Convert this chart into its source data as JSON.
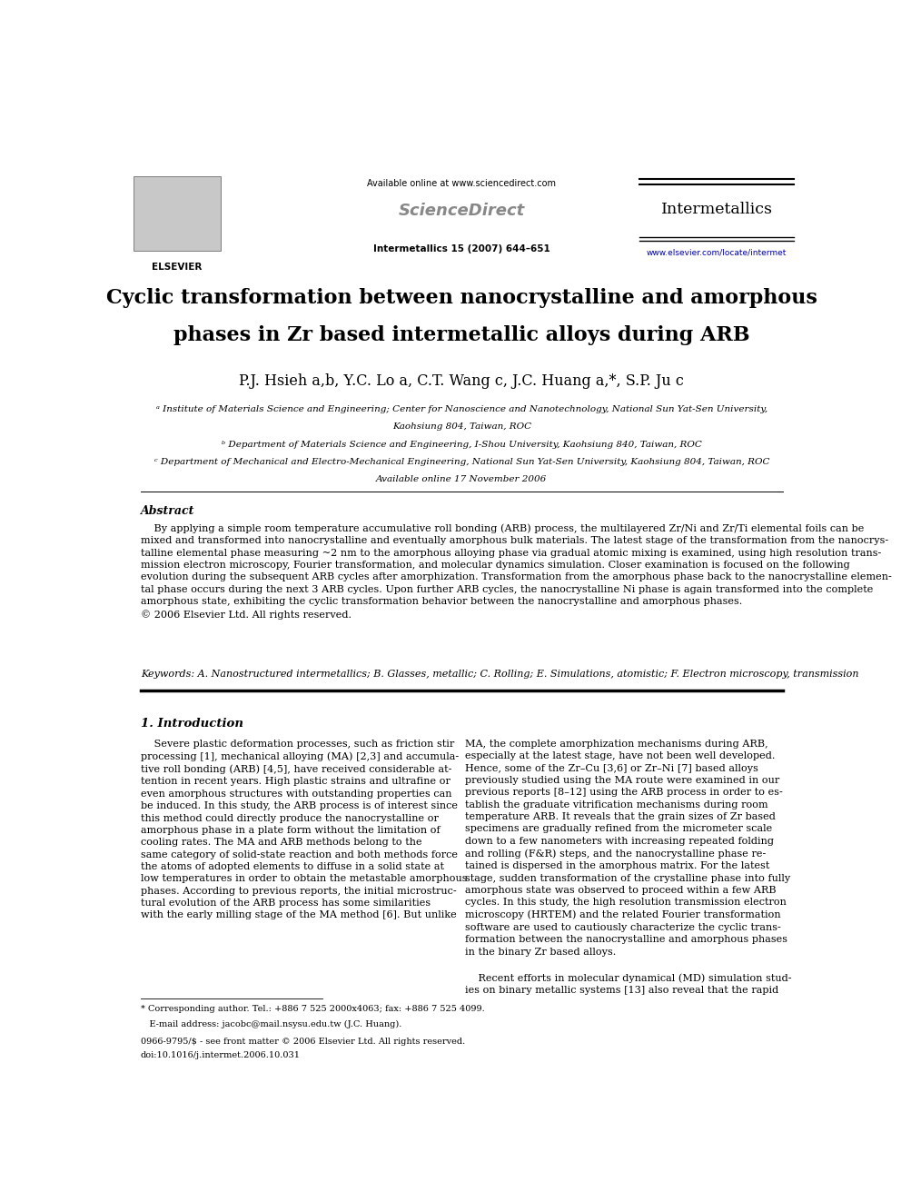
{
  "bg_color": "#ffffff",
  "page_width": 9.92,
  "page_height": 13.23,
  "header_available": "Available online at www.sciencedirect.com",
  "header_sciencedirect": "ScienceDirect",
  "header_journal_info": "Intermetallics 15 (2007) 644–651",
  "header_intermetallics": "Intermetallics",
  "header_url": "www.elsevier.com/locate/intermet",
  "elsevier_text": "ELSEVIER",
  "title_line1": "Cyclic transformation between nanocrystalline and amorphous",
  "title_line2": "phases in Zr based intermetallic alloys during ARB",
  "authors_str": "P.J. Hsieh a,b, Y.C. Lo a, C.T. Wang c, J.C. Huang a,*, S.P. Ju c",
  "affil_a1": "ᵃ Institute of Materials Science and Engineering; Center for Nanoscience and Nanotechnology, National Sun Yat-Sen University,",
  "affil_a2": "Kaohsiung 804, Taiwan, ROC",
  "affil_b": "ᵇ Department of Materials Science and Engineering, I-Shou University, Kaohsiung 840, Taiwan, ROC",
  "affil_c": "ᶜ Department of Mechanical and Electro-Mechanical Engineering, National Sun Yat-Sen University, Kaohsiung 804, Taiwan, ROC",
  "available_online_date": "Available online 17 November 2006",
  "abstract_title": "Abstract",
  "abstract_body": "    By applying a simple room temperature accumulative roll bonding (ARB) process, the multilayered Zr/Ni and Zr/Ti elemental foils can be\nmixed and transformed into nanocrystalline and eventually amorphous bulk materials. The latest stage of the transformation from the nanocrys-\ntalline elemental phase measuring ~2 nm to the amorphous alloying phase via gradual atomic mixing is examined, using high resolution trans-\nmission electron microscopy, Fourier transformation, and molecular dynamics simulation. Closer examination is focused on the following\nevolution during the subsequent ARB cycles after amorphization. Transformation from the amorphous phase back to the nanocrystalline elemen-\ntal phase occurs during the next 3 ARB cycles. Upon further ARB cycles, the nanocrystalline Ni phase is again transformed into the complete\namorphous state, exhibiting the cyclic transformation behavior between the nanocrystalline and amorphous phases.\n© 2006 Elsevier Ltd. All rights reserved.",
  "keywords": "Keywords: A. Nanostructured intermetallics; B. Glasses, metallic; C. Rolling; E. Simulations, atomistic; F. Electron microscopy, transmission",
  "intro_title": "1. Introduction",
  "intro_left": "    Severe plastic deformation processes, such as friction stir\nprocessing [1], mechanical alloying (MA) [2,3] and accumula-\ntive roll bonding (ARB) [4,5], have received considerable at-\ntention in recent years. High plastic strains and ultrafine or\neven amorphous structures with outstanding properties can\nbe induced. In this study, the ARB process is of interest since\nthis method could directly produce the nanocrystalline or\namorphous phase in a plate form without the limitation of\ncooling rates. The MA and ARB methods belong to the\nsame category of solid-state reaction and both methods force\nthe atoms of adopted elements to diffuse in a solid state at\nlow temperatures in order to obtain the metastable amorphous\nphases. According to previous reports, the initial microstruc-\ntural evolution of the ARB process has some similarities\nwith the early milling stage of the MA method [6]. But unlike",
  "intro_right": "MA, the complete amorphization mechanisms during ARB,\nespecially at the latest stage, have not been well developed.\nHence, some of the Zr–Cu [3,6] or Zr–Ni [7] based alloys\npreviously studied using the MA route were examined in our\nprevious reports [8–12] using the ARB process in order to es-\ntablish the graduate vitrification mechanisms during room\ntemperature ARB. It reveals that the grain sizes of Zr based\nspecimens are gradually refined from the micrometer scale\ndown to a few nanometers with increasing repeated folding\nand rolling (F&R) steps, and the nanocrystalline phase re-\ntained is dispersed in the amorphous matrix. For the latest\nstage, sudden transformation of the crystalline phase into fully\namorphous state was observed to proceed within a few ARB\ncycles. In this study, the high resolution transmission electron\nmicroscopy (HRTEM) and the related Fourier transformation\nsoftware are used to cautiously characterize the cyclic trans-\nformation between the nanocrystalline and amorphous phases\nin the binary Zr based alloys.",
  "intro_right2": "    Recent efforts in molecular dynamical (MD) simulation stud-\nies on binary metallic systems [13] also reveal that the rapid",
  "footnote_line": "* Corresponding author. Tel.: +886 7 525 2000x4063; fax: +886 7 525 4099.",
  "footnote_email": "   E-mail address: jacobc@mail.nsysu.edu.tw (J.C. Huang).",
  "issn_line1": "0966-9795/$ - see front matter © 2006 Elsevier Ltd. All rights reserved.",
  "issn_line2": "doi:10.1016/j.intermet.2006.10.031"
}
